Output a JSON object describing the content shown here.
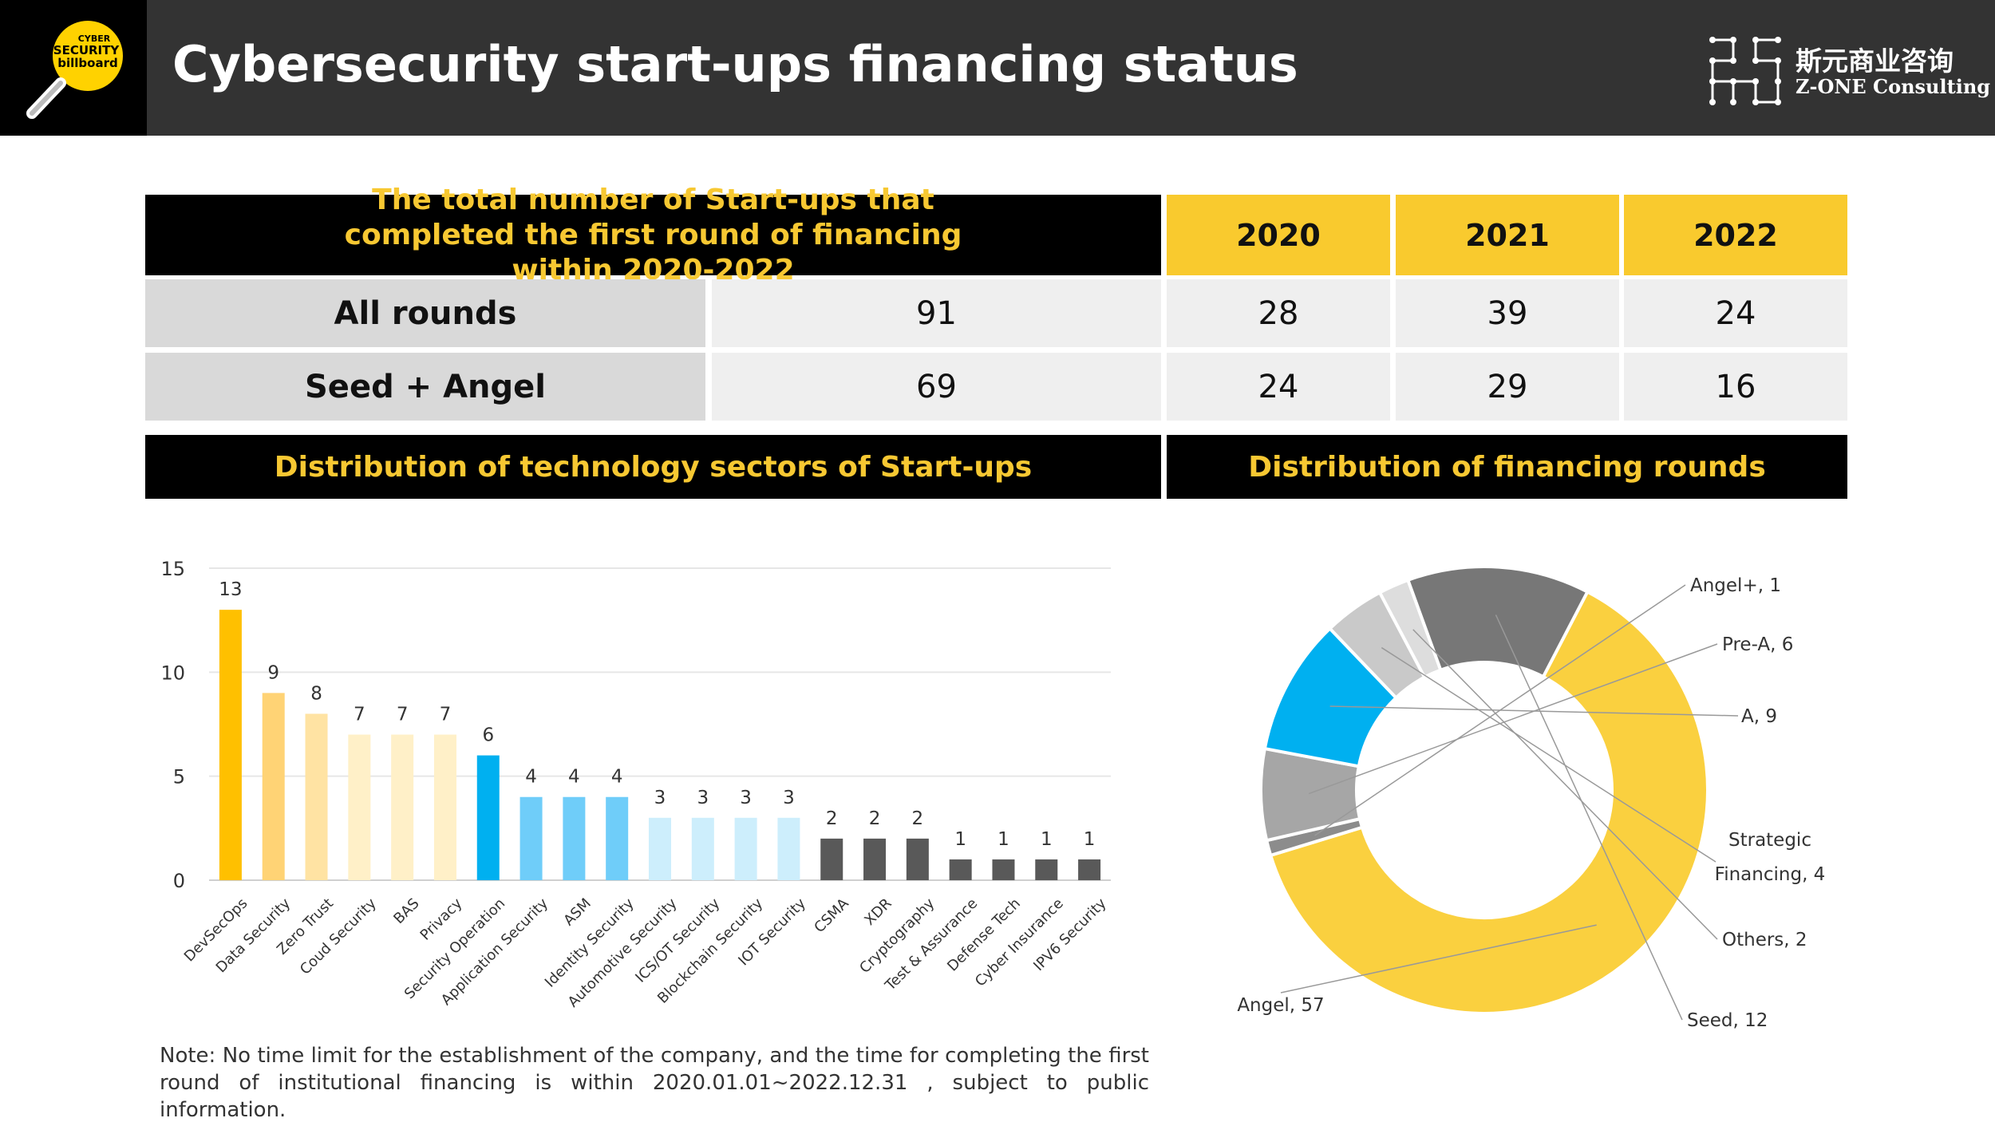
{
  "header": {
    "title": "Cybersecurity start-ups financing status",
    "logo_text": [
      "CYBER",
      "SECURITY",
      "billboard"
    ],
    "brand_cn": "斯元商业咨询",
    "brand_en": "Z-ONE Consulting"
  },
  "table": {
    "heading": "The total number of Start-ups that completed the first round of financing within 2020-2022",
    "years": [
      "2020",
      "2021",
      "2022"
    ],
    "rows": [
      {
        "label": "All rounds",
        "total": "91",
        "values": [
          "28",
          "39",
          "24"
        ]
      },
      {
        "label": "Seed + Angel",
        "total": "69",
        "values": [
          "24",
          "29",
          "16"
        ]
      }
    ]
  },
  "sections": {
    "left": "Distribution of technology sectors of Start-ups",
    "right": "Distribution of financing rounds"
  },
  "chart_data": [
    {
      "type": "bar",
      "ylim": [
        0,
        15
      ],
      "yticks": [
        0,
        5,
        10,
        15
      ],
      "grid": true,
      "categories": [
        "DevSecOps",
        "Data Security",
        "Zero Trust",
        "Coud Security",
        "BAS",
        "Privacy",
        "Security Operation",
        "Application Security",
        "ASM",
        "Identity Security",
        "Automotive Security",
        "ICS/OT Security",
        "Blockchain Security",
        "IOT Security",
        "CSMA",
        "XDR",
        "Cryptography",
        "Test & Assurance",
        "Defense Tech",
        "Cyber Insurance",
        "IPV6 Security"
      ],
      "values": [
        13,
        9,
        8,
        7,
        7,
        7,
        6,
        4,
        4,
        4,
        3,
        3,
        3,
        3,
        2,
        2,
        2,
        1,
        1,
        1,
        1
      ],
      "colors": [
        "#FFC000",
        "#FFD375",
        "#FFE3A3",
        "#FFF0C8",
        "#FFF0C8",
        "#FFF0C8",
        "#00B0F0",
        "#6FCDF9",
        "#6FCDF9",
        "#6FCDF9",
        "#CDEEFC",
        "#CDEEFC",
        "#CDEEFC",
        "#CDEEFC",
        "#595959",
        "#595959",
        "#595959",
        "#595959",
        "#595959",
        "#595959",
        "#595959"
      ]
    },
    {
      "type": "pie",
      "donut": true,
      "slices": [
        {
          "label": "Angel, 57",
          "name": "Angel",
          "value": 57,
          "color": "#FAD03F"
        },
        {
          "label": "Angel+, 1",
          "name": "Angel+",
          "value": 1,
          "color": "#8C8C8C"
        },
        {
          "label": "Pre-A, 6",
          "name": "Pre-A",
          "value": 6,
          "color": "#A6A6A6"
        },
        {
          "label": "A, 9",
          "name": "A",
          "value": 9,
          "color": "#00B0F0"
        },
        {
          "label": "Strategic Financing, 4",
          "name": "Strategic Financing",
          "value": 4,
          "color": "#C9C9C9"
        },
        {
          "label": "Others, 2",
          "name": "Others",
          "value": 2,
          "color": "#DDDDDD"
        },
        {
          "label": "Seed, 12",
          "name": "Seed",
          "value": 12,
          "color": "#777777"
        }
      ]
    }
  ],
  "note": "Note: No time limit for the establishment of the company, and the time for completing the first round of institutional financing is  within 2020.01.01~2022.12.31 , subject to public information."
}
